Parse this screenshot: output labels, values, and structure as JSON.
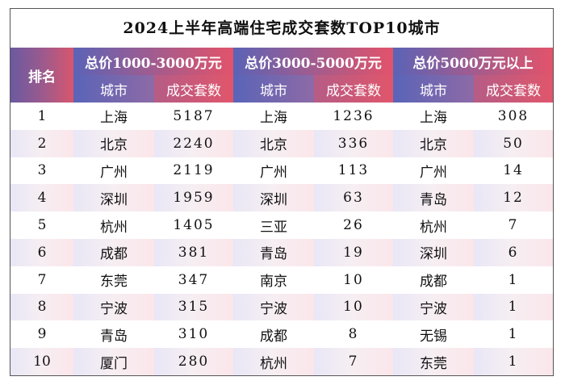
{
  "title": "2024上半年高端住宅成交套数TOP10城市",
  "header": {
    "rank": "排名",
    "groups": [
      "总价1000-3000万元",
      "总价3000-5000万元",
      "总价5000万元以上"
    ],
    "city": "城市",
    "count": "成交套数"
  },
  "rows": [
    {
      "rank": "1",
      "c1": "上海",
      "n1": "5187",
      "c2": "上海",
      "n2": "1236",
      "c3": "上海",
      "n3": "308"
    },
    {
      "rank": "2",
      "c1": "北京",
      "n1": "2240",
      "c2": "北京",
      "n2": "336",
      "c3": "北京",
      "n3": "50"
    },
    {
      "rank": "3",
      "c1": "广州",
      "n1": "2119",
      "c2": "广州",
      "n2": "113",
      "c3": "广州",
      "n3": "14"
    },
    {
      "rank": "4",
      "c1": "深圳",
      "n1": "1959",
      "c2": "深圳",
      "n2": "63",
      "c3": "青岛",
      "n3": "12"
    },
    {
      "rank": "5",
      "c1": "杭州",
      "n1": "1405",
      "c2": "三亚",
      "n2": "26",
      "c3": "杭州",
      "n3": "7"
    },
    {
      "rank": "6",
      "c1": "成都",
      "n1": "381",
      "c2": "青岛",
      "n2": "19",
      "c3": "深圳",
      "n3": "6"
    },
    {
      "rank": "7",
      "c1": "东莞",
      "n1": "347",
      "c2": "南京",
      "n2": "10",
      "c3": "成都",
      "n3": "1"
    },
    {
      "rank": "8",
      "c1": "宁波",
      "n1": "315",
      "c2": "宁波",
      "n2": "10",
      "c3": "宁波",
      "n3": "1"
    },
    {
      "rank": "9",
      "c1": "青岛",
      "n1": "310",
      "c2": "成都",
      "n2": "8",
      "c3": "无锡",
      "n3": "1"
    },
    {
      "rank": "10",
      "c1": "厦门",
      "n1": "280",
      "c2": "杭州",
      "n2": "7",
      "c3": "东莞",
      "n3": "1"
    }
  ],
  "colors": {
    "header_blue": "#5b63b6",
    "header_red": "#e2536a",
    "row_stripe_left": "#e9e7f6",
    "row_stripe_right": "#fbe6ea"
  }
}
